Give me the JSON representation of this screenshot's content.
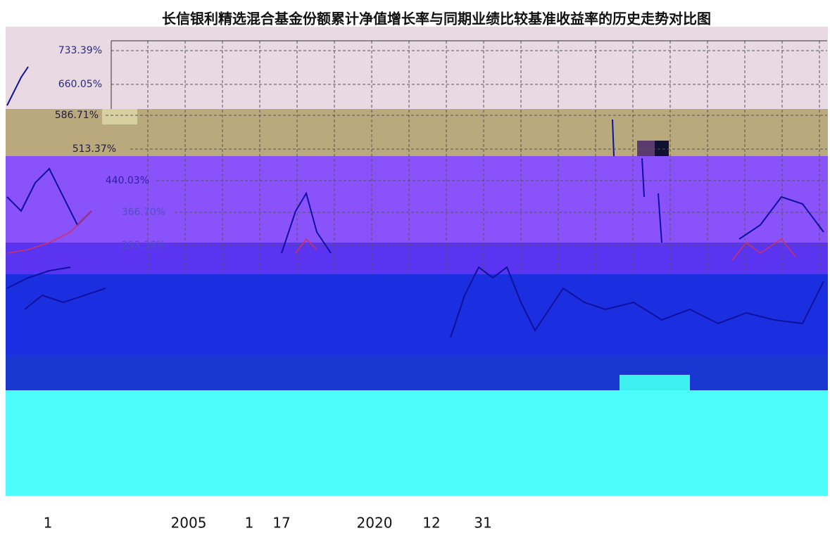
{
  "title": "长信银利精选混合基金份额累计净值增长率与同期业绩比较基准收益率的历史走势对比图",
  "y_axis_labels": [
    "733.39%",
    "660.05%",
    "586.71%",
    "513.37%",
    "440.03%",
    "366.70%",
    "293.36%"
  ],
  "footer": [
    "1",
    "2005",
    "1",
    "17",
    "2020",
    "12",
    "31"
  ]
}
